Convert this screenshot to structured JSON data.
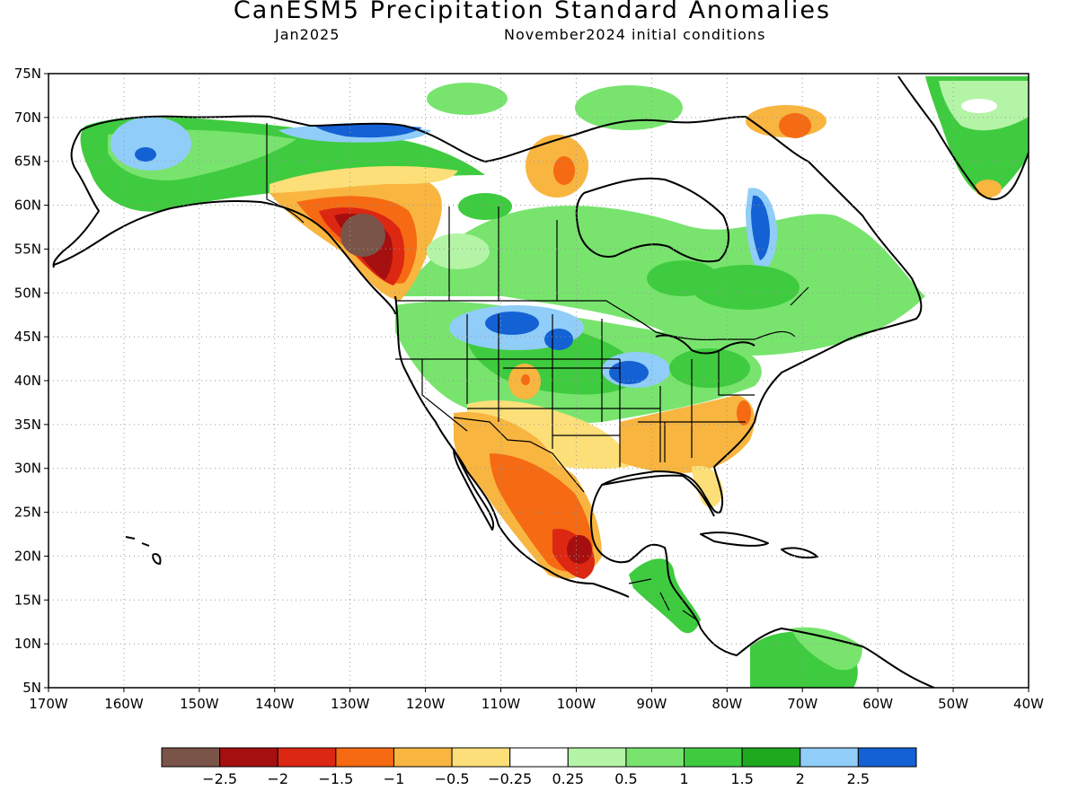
{
  "header": {
    "title": "CanESM5 Precipitation Standard Anomalies",
    "valid_month": "Jan2025",
    "initial_conditions": "November2024 initial conditions"
  },
  "map": {
    "lon_range": [
      -170,
      -40
    ],
    "lat_range": [
      5,
      75
    ],
    "lon_ticks": [
      "170W",
      "160W",
      "150W",
      "140W",
      "130W",
      "120W",
      "110W",
      "100W",
      "90W",
      "80W",
      "70W",
      "60W",
      "50W",
      "40W"
    ],
    "lat_ticks": [
      "75N",
      "70N",
      "65N",
      "60N",
      "55N",
      "50N",
      "45N",
      "40N",
      "35N",
      "30N",
      "25N",
      "20N",
      "15N",
      "10N",
      "5N"
    ],
    "gridlines": "dotted",
    "anomaly_regions": [
      {
        "name": "alaska-north-slope",
        "lon": -150,
        "lat": 67,
        "rx": 9,
        "ry": 3.5,
        "level": "1.5-2"
      },
      {
        "name": "alaska-west",
        "lon": -160,
        "lat": 64,
        "rx": 5,
        "ry": 3,
        "level": "2-2.5"
      },
      {
        "name": "alaska-beaufort",
        "lon": -128,
        "lat": 68.5,
        "rx": 6,
        "ry": 1.5,
        "level": ">2.5"
      },
      {
        "name": "bc-coast",
        "lon": -128,
        "lat": 56,
        "rx": 4,
        "ry": 3.5,
        "level": "<-2.5"
      },
      {
        "name": "yukon",
        "lon": -125,
        "lat": 61.5,
        "rx": 7,
        "ry": 2,
        "level": "-1--0.5"
      },
      {
        "name": "north-plains",
        "lon": -105,
        "lat": 46,
        "rx": 6,
        "ry": 1.8,
        "level": ">2.5"
      },
      {
        "name": "midwest",
        "lon": -92,
        "lat": 41,
        "rx": 4,
        "ry": 1.8,
        "level": ">2.5"
      },
      {
        "name": "hudson-east",
        "lon": -76,
        "lat": 57,
        "rx": 1.8,
        "ry": 4,
        "level": ">2.5"
      },
      {
        "name": "mexico-south",
        "lon": -100,
        "lat": 20,
        "rx": 2,
        "ry": 2,
        "level": "-2.5--2"
      },
      {
        "name": "mexico-west",
        "lon": -106,
        "lat": 27,
        "rx": 4,
        "ry": 4,
        "level": "-1.5--1"
      },
      {
        "name": "southeast-us",
        "lon": -82,
        "lat": 33,
        "rx": 6,
        "ry": 3,
        "level": "-1--0.5"
      },
      {
        "name": "greenland-south",
        "lon": -45,
        "lat": 68,
        "rx": 5,
        "ry": 4,
        "level": "1-1.5"
      },
      {
        "name": "baffin",
        "lon": -68,
        "lat": 68,
        "rx": 3,
        "ry": 1.5,
        "level": "-1.5--1"
      }
    ]
  },
  "colorbar": {
    "colors": [
      "#7a5448",
      "#a50f0f",
      "#dc2712",
      "#f56a12",
      "#f8b540",
      "#fcdf78",
      "#ffffff",
      "#b4f4a6",
      "#78e46e",
      "#3fcb3f",
      "#1fa91f",
      "#90cdf8",
      "#1461d4"
    ],
    "labels": [
      "−2.5",
      "−2",
      "−1.5",
      "−1",
      "−0.5",
      "−0.25",
      "0.25",
      "0.5",
      "1",
      "1.5",
      "2",
      "2.5"
    ]
  }
}
